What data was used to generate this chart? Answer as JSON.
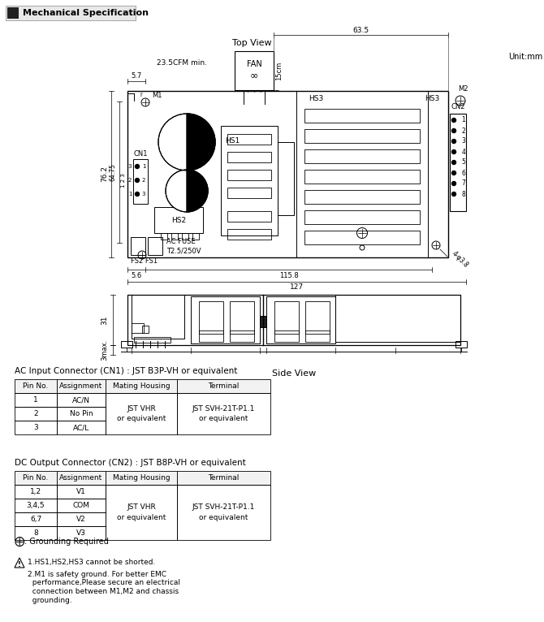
{
  "title": "Mechanical Specification",
  "unit": "Unit:mm",
  "top_view_label": "Top View",
  "side_view_label": "Side View",
  "fan_label": "FAN",
  "fan_sub": "∞",
  "fan_airflow": "23.5CFM min.",
  "dim_635": "63.5",
  "dim_15cm": "15cm",
  "dim_762": "76.2",
  "dim_6475": "64.75",
  "dim_57": "5.7",
  "dim_56": "5.6",
  "dim_1158": "115.8",
  "dim_127": "127",
  "dim_31": "31",
  "dim_3max": "3max.",
  "dim_4d38": "4-φ3.8",
  "label_m1": "M1",
  "label_m2": "M2",
  "label_cn1": "CN1",
  "label_cn2": "CN2",
  "label_hs1": "HS1",
  "label_hs2": "HS2",
  "label_hs3": "HS3",
  "label_fuse_line1": "AC FUSE",
  "label_fuse_line2": "T2.5/250V",
  "label_fs": "FS2 FS1",
  "bg_color": "#ffffff",
  "line_color": "#000000",
  "ac_title": "AC Input Connector (CN1) : JST B3P-VH or equivalent",
  "dc_title": "DC Output Connector (CN2) : JST B8P-VH or equivalent",
  "ac_headers": [
    "Pin No.",
    "Assignment",
    "Mating Housing",
    "Terminal"
  ],
  "ac_rows": [
    [
      "1",
      "AC/N",
      "JST VHR\nor equivalent",
      "JST SVH-21T-P1.1\nor equivalent"
    ],
    [
      "2",
      "No Pin",
      "",
      ""
    ],
    [
      "3",
      "AC/L",
      "",
      ""
    ]
  ],
  "dc_headers": [
    "Pin No.",
    "Assignment",
    "Mating Housing",
    "Terminal"
  ],
  "dc_rows": [
    [
      "1,2",
      "V1",
      "JST VHR\nor equivalent",
      "JST SVH-21T-P1.1\nor equivalent"
    ],
    [
      "3,4,5",
      "COM",
      "",
      ""
    ],
    [
      "6,7",
      "V2",
      "",
      ""
    ],
    [
      "8",
      "V3",
      "",
      ""
    ]
  ],
  "note_ground": "⊕ : Grounding Required",
  "note1": "1.HS1,HS2,HS3 cannot be shorted.",
  "note2": "2.M1 is safety ground. For better EMC\n   performance,Please secure an electrical\n   connection between M1,M2 and chassis\n   grounding."
}
